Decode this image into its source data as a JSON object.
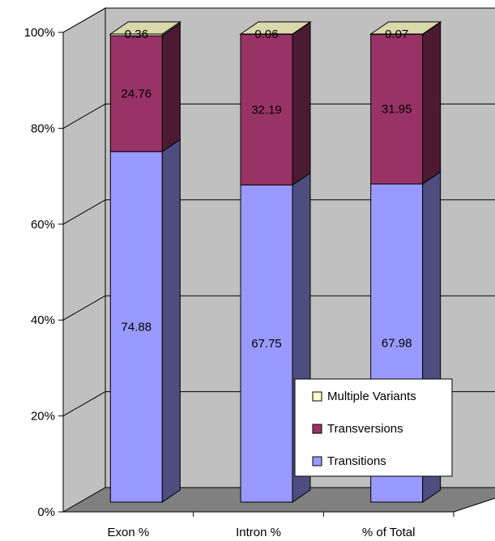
{
  "chart_data": {
    "type": "bar",
    "stacked": true,
    "three_d": true,
    "percent": true,
    "categories": [
      "Exon %",
      "Intron %",
      "% of Total"
    ],
    "series": [
      {
        "name": "Transitions",
        "values": [
          74.88,
          67.75,
          67.98
        ],
        "color": "#9999ff"
      },
      {
        "name": "Transversions",
        "values": [
          24.76,
          32.19,
          31.95
        ],
        "color": "#993366"
      },
      {
        "name": "Multiple Variants",
        "values": [
          0.36,
          0.06,
          0.07
        ],
        "color": "#ffffcc"
      }
    ],
    "data_labels": [
      [
        "74.88",
        "67.75",
        "67.98"
      ],
      [
        "24.76",
        "32.19",
        "31.95"
      ],
      [
        "0.36",
        "0.06",
        "0.07"
      ]
    ],
    "y_ticks": [
      "0%",
      "20%",
      "40%",
      "60%",
      "80%",
      "100%"
    ],
    "ylim": [
      0,
      100
    ],
    "grid": true,
    "legend": {
      "position": "bottom-right",
      "entries": [
        "Multiple Variants",
        "Transversions",
        "Transitions"
      ]
    },
    "colors": {
      "wall": "#c0c0c0",
      "floor": "#808080",
      "gridline": "#000000"
    }
  }
}
